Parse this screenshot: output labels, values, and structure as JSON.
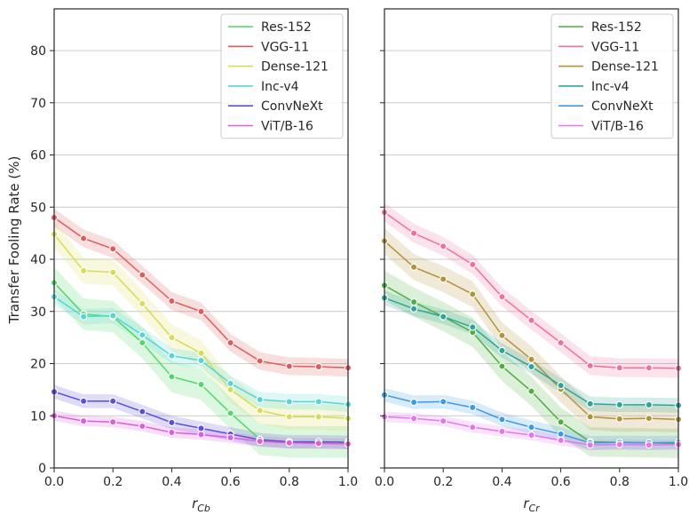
{
  "chart_data": {
    "type": "line",
    "ylabel": "Transfer Fooling Rate (%)",
    "ylim": [
      0,
      88
    ],
    "yticks": [
      0,
      10,
      20,
      30,
      40,
      50,
      60,
      70,
      80
    ],
    "xlim": [
      0,
      1
    ],
    "xticks": [
      0.0,
      0.2,
      0.4,
      0.6,
      0.8,
      1.0
    ],
    "grid": "horizontal",
    "legend_position": "upper-right",
    "x": [
      0.0,
      0.1,
      0.2,
      0.3,
      0.4,
      0.5,
      0.6,
      0.7,
      0.8,
      0.9,
      1.0
    ],
    "panels": [
      {
        "xlabel_main": "r",
        "xlabel_sub": "Cb",
        "series": [
          {
            "name": "Res-152",
            "color": "#4fd964",
            "values": [
              35.5,
              29.5,
              29.0,
              24.0,
              17.5,
              16.0,
              10.5,
              5.5,
              5.0,
              5.0,
              5.0
            ],
            "band": 3.0
          },
          {
            "name": "VGG-11",
            "color": "#e05b5b",
            "values": [
              48.0,
              44.0,
              42.0,
              37.0,
              32.0,
              30.0,
              24.0,
              20.5,
              19.5,
              19.4,
              19.2
            ],
            "band": 1.7
          },
          {
            "name": "Dense-121",
            "color": "#d6dc54",
            "values": [
              44.8,
              37.8,
              37.5,
              31.5,
              25.0,
              22.0,
              15.0,
              11.0,
              9.8,
              9.8,
              9.5
            ],
            "band": 2.5
          },
          {
            "name": "Inc-v4",
            "color": "#54d6d6",
            "values": [
              32.8,
              29.0,
              29.2,
              25.5,
              21.5,
              20.6,
              16.2,
              13.1,
              12.7,
              12.7,
              12.2
            ],
            "band": 1.5
          },
          {
            "name": "ConvNeXt",
            "color": "#5c4fd9",
            "values": [
              14.6,
              12.8,
              12.8,
              10.8,
              8.7,
              7.6,
              6.5,
              5.4,
              5.0,
              5.0,
              4.9
            ],
            "band": 1.3
          },
          {
            "name": "ViT/B-16",
            "color": "#e05be0",
            "values": [
              10.0,
              9.0,
              8.8,
              8.0,
              6.8,
              6.4,
              5.8,
              5.1,
              4.8,
              4.7,
              4.6
            ],
            "band": 1.0
          }
        ]
      },
      {
        "xlabel_main": "r",
        "xlabel_sub": "Cr",
        "series": [
          {
            "name": "Res-152",
            "color": "#4caf3f",
            "values": [
              35.0,
              31.8,
              29.0,
              26.0,
              19.5,
              14.7,
              8.8,
              5.0,
              4.9,
              4.8,
              4.7
            ],
            "band": 2.8
          },
          {
            "name": "VGG-11",
            "color": "#f27095",
            "values": [
              49.0,
              45.0,
              42.5,
              39.0,
              32.8,
              28.3,
              24.0,
              19.6,
              19.2,
              19.2,
              19.1
            ],
            "band": 1.8
          },
          {
            "name": "Dense-121",
            "color": "#b3923a",
            "values": [
              43.5,
              38.5,
              36.2,
              33.3,
              25.4,
              20.8,
              15.1,
              9.8,
              9.4,
              9.5,
              9.3
            ],
            "band": 2.5
          },
          {
            "name": "Inc-v4",
            "color": "#2aa698",
            "values": [
              32.6,
              30.5,
              29.0,
              27.0,
              22.5,
              19.4,
              15.8,
              12.3,
              12.1,
              12.1,
              12.0
            ],
            "band": 1.4
          },
          {
            "name": "ConvNeXt",
            "color": "#3a9be6",
            "values": [
              14.0,
              12.6,
              12.7,
              11.6,
              9.3,
              7.8,
              6.5,
              4.8,
              4.9,
              4.8,
              4.9
            ],
            "band": 1.3
          },
          {
            "name": "ViT/B-16",
            "color": "#e872f2",
            "values": [
              9.8,
              9.5,
              9.0,
              7.8,
              7.0,
              6.3,
              5.3,
              4.4,
              4.5,
              4.4,
              4.5
            ],
            "band": 1.0
          }
        ]
      }
    ]
  }
}
